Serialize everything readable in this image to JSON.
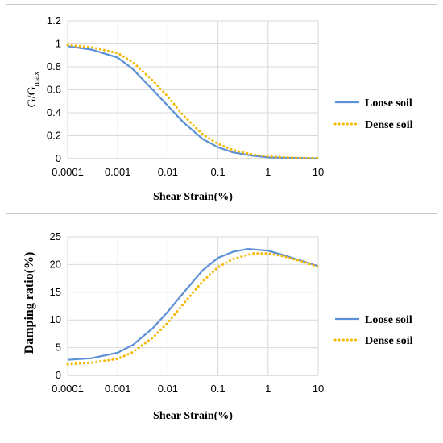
{
  "colors": {
    "loose": "#5b8fd6",
    "dense": "#f5b800",
    "grid": "#d9d9d9",
    "axis": "#bfbfbf"
  },
  "chart_data": [
    {
      "type": "line",
      "xscale": "log",
      "xlim": [
        0.0001,
        10
      ],
      "ylim": [
        0,
        1.2
      ],
      "x_ticks": [
        "0.0001",
        "0.001",
        "0.01",
        "0.1",
        "1",
        "10"
      ],
      "y_ticks": [
        "0",
        "0.2",
        "0.4",
        "0.6",
        "0.8",
        "1",
        "1.2"
      ],
      "xlabel": "Shear Strain(%)",
      "ylabel_main": "G/G",
      "ylabel_sub": "max",
      "grid": true,
      "legend": "right",
      "series": [
        {
          "name": "Loose soil",
          "style": "solid",
          "x": [
            0.0001,
            0.0003,
            0.001,
            0.002,
            0.005,
            0.01,
            0.02,
            0.05,
            0.1,
            0.2,
            0.5,
            1,
            2,
            5,
            10
          ],
          "y": [
            0.98,
            0.95,
            0.88,
            0.78,
            0.6,
            0.46,
            0.32,
            0.17,
            0.1,
            0.055,
            0.025,
            0.012,
            0.008,
            0.004,
            0.002
          ]
        },
        {
          "name": "Dense soil",
          "style": "dotted",
          "x": [
            0.0001,
            0.0003,
            0.001,
            0.002,
            0.005,
            0.01,
            0.02,
            0.05,
            0.1,
            0.2,
            0.5,
            1,
            2,
            5,
            10
          ],
          "y": [
            0.99,
            0.97,
            0.92,
            0.84,
            0.68,
            0.54,
            0.38,
            0.21,
            0.13,
            0.075,
            0.035,
            0.02,
            0.012,
            0.006,
            0.004
          ]
        }
      ]
    },
    {
      "type": "line",
      "xscale": "log",
      "xlim": [
        0.0001,
        10
      ],
      "ylim": [
        0,
        25
      ],
      "x_ticks": [
        "0.0001",
        "0.001",
        "0.01",
        "0.1",
        "1",
        "10"
      ],
      "y_ticks": [
        "0",
        "5",
        "10",
        "15",
        "20",
        "25"
      ],
      "xlabel": "Shear Strain(%)",
      "ylabel": "Damping ratio(%)",
      "grid": true,
      "legend": "right",
      "series": [
        {
          "name": "Loose soil",
          "style": "solid",
          "x": [
            0.0001,
            0.0003,
            0.001,
            0.002,
            0.005,
            0.01,
            0.02,
            0.05,
            0.1,
            0.2,
            0.4,
            1,
            2,
            5,
            10
          ],
          "y": [
            2.8,
            3.1,
            4.1,
            5.5,
            8.5,
            11.5,
            14.8,
            19.0,
            21.2,
            22.3,
            22.8,
            22.5,
            21.7,
            20.6,
            19.7
          ]
        },
        {
          "name": "Dense soil",
          "style": "dotted",
          "x": [
            0.0001,
            0.0003,
            0.001,
            0.002,
            0.005,
            0.01,
            0.02,
            0.05,
            0.1,
            0.2,
            0.5,
            1,
            2,
            5,
            10
          ],
          "y": [
            2.0,
            2.3,
            3.0,
            4.2,
            6.8,
            9.5,
            12.8,
            17.0,
            19.5,
            21.0,
            22.0,
            22.0,
            21.5,
            20.5,
            19.6
          ]
        }
      ]
    }
  ]
}
